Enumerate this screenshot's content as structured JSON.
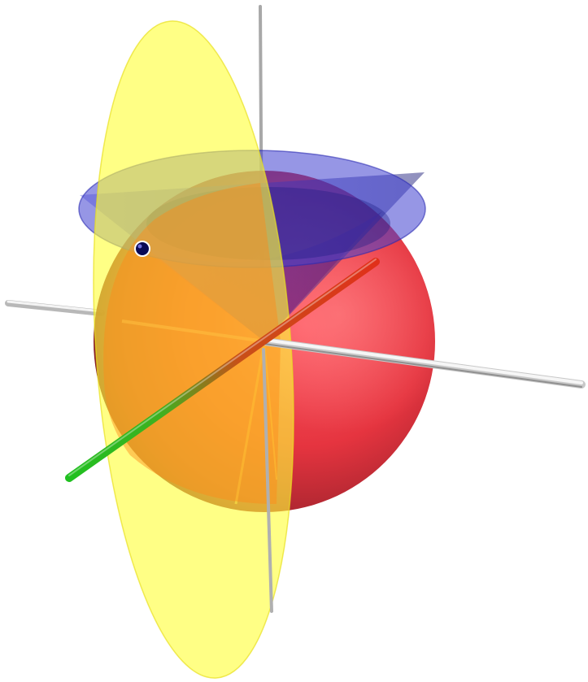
{
  "scene": {
    "kind": "3d-geometry-illustration",
    "background_color": "#ffffff",
    "objects": [
      {
        "name": "sphere",
        "color": "#e0202a",
        "style": "translucent"
      },
      {
        "name": "cone",
        "color": "#3a3ad0",
        "style": "translucent"
      },
      {
        "name": "plane-disc",
        "color": "#ffff44",
        "style": "translucent"
      },
      {
        "name": "coordinate-axis-vertical",
        "color": "#b0b0b0"
      },
      {
        "name": "coordinate-axis-horizontal",
        "color": "#b8b8b8"
      },
      {
        "name": "vector-rod",
        "color_start": "#1fc01f",
        "color_end": "#e0301a"
      },
      {
        "name": "marker-point",
        "color": "#0a0a55"
      }
    ]
  }
}
